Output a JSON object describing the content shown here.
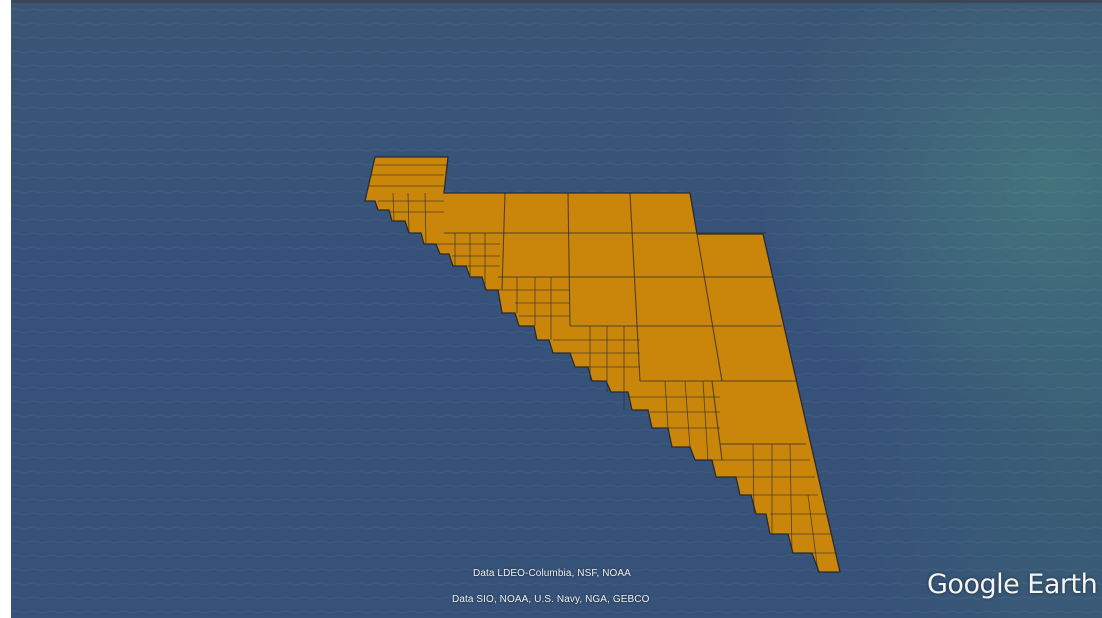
{
  "map": {
    "attribution_line1": "Data LDEO-Columbia, NSF, NOAA",
    "attribution_line2": "Data SIO, NOAA, U.S. Navy, NGA, GEBCO",
    "logo_text": "Google Earth",
    "colors": {
      "ocean": "#365278",
      "overlay_fill": "#c9860a",
      "overlay_stroke": "#2a2a30"
    }
  }
}
